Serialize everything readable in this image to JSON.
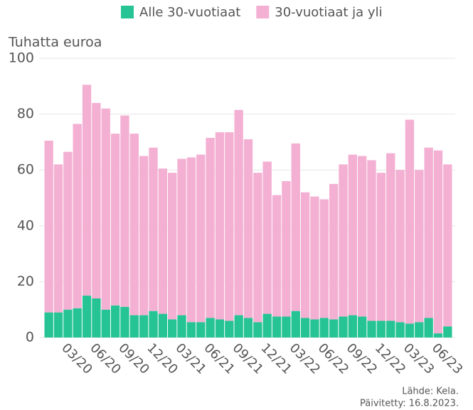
{
  "chart_data": {
    "type": "stacked_bar",
    "y_label": "Tuhatta euroa",
    "source": "Lähde: Kela.",
    "updated": "Päivitetty: 16.8.2023.",
    "categories": [
      null,
      null,
      "03/20",
      null,
      null,
      "06/20",
      null,
      null,
      "09/20",
      null,
      null,
      "12/20",
      null,
      null,
      "03/21",
      null,
      null,
      "06/21",
      null,
      null,
      "09/21",
      null,
      null,
      "12/21",
      null,
      null,
      "03/22",
      null,
      null,
      "06/22",
      null,
      null,
      "09/22",
      null,
      null,
      "12/22",
      null,
      null,
      "03/23",
      null,
      null,
      "06/23",
      null
    ],
    "series": [
      {
        "name": "Alle 30-vuotiaat",
        "color": "#26c494",
        "values": [
          9,
          9,
          10,
          10.5,
          15,
          14,
          10,
          11.5,
          11,
          8,
          8,
          9.5,
          8.5,
          6.5,
          8,
          5.5,
          5.5,
          7,
          6.5,
          6,
          8,
          7,
          5.5,
          8.5,
          7.5,
          7.5,
          9.5,
          7,
          6.5,
          7,
          6.5,
          7.5,
          8,
          7.5,
          6,
          6,
          6,
          5.5,
          5,
          5.5,
          7,
          1.5,
          4
        ]
      },
      {
        "name": "30-vuotiaat ja yli",
        "color": "#f4b0d3",
        "values": [
          61.5,
          53,
          56.5,
          66,
          75.5,
          70,
          72,
          61.5,
          68.5,
          65,
          57,
          58.5,
          52,
          52.5,
          56,
          59,
          60,
          64.5,
          67,
          67.5,
          73.5,
          64,
          53.5,
          54.5,
          43.5,
          48.5,
          60,
          45,
          44,
          42.5,
          48.5,
          54.5,
          57.5,
          57.5,
          57.5,
          53,
          60,
          54.5,
          73,
          54.5,
          61,
          65.5,
          58
        ]
      }
    ],
    "ylim": [
      0,
      100
    ],
    "yticks": [
      0,
      20,
      40,
      60,
      80,
      100
    ],
    "grid": true
  }
}
